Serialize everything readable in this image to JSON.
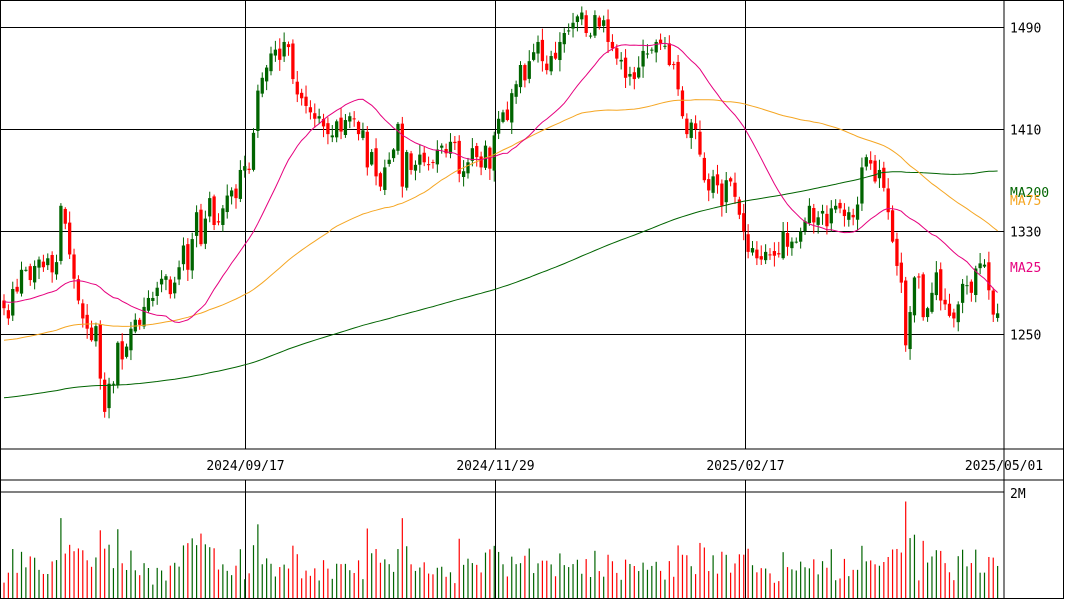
{
  "chart_data": [
    {
      "type": "candlestick",
      "x_ticks": [
        "2024/09/17",
        "2024/11/29",
        "2025/02/17",
        "2025/05/01"
      ],
      "y_ticks": [
        1250,
        1330,
        1410,
        1490
      ],
      "ylim": [
        1160,
        1510
      ],
      "grid": true,
      "legend": [
        {
          "name": "MA200",
          "color": "#006400"
        },
        {
          "name": "MA75",
          "color": "#f5a623"
        },
        {
          "name": "MA25",
          "color": "#e6007e"
        }
      ],
      "colors": {
        "up": "#006400",
        "down": "#ff0000"
      },
      "closes": [
        1270,
        1262,
        1285,
        1283,
        1300,
        1300,
        1292,
        1303,
        1308,
        1302,
        1309,
        1298,
        1306,
        1350,
        1336,
        1312,
        1293,
        1276,
        1262,
        1254,
        1245,
        1256,
        1215,
        1189,
        1211,
        1211,
        1243,
        1230,
        1240,
        1254,
        1261,
        1257,
        1271,
        1278,
        1278,
        1286,
        1293,
        1295,
        1281,
        1290,
        1302,
        1319,
        1300,
        1324,
        1345,
        1320,
        1340,
        1356,
        1335,
        1337,
        1348,
        1358,
        1362,
        1356,
        1378,
        1381,
        1378,
        1407,
        1440,
        1450,
        1458,
        1469,
        1472,
        1464,
        1478,
        1474,
        1449,
        1437,
        1434,
        1428,
        1423,
        1418,
        1420,
        1412,
        1406,
        1405,
        1416,
        1408,
        1417,
        1420,
        1418,
        1406,
        1409,
        1380,
        1392,
        1373,
        1365,
        1380,
        1386,
        1394,
        1414,
        1365,
        1392,
        1378,
        1382,
        1390,
        1384,
        1382,
        1384,
        1394,
        1397,
        1391,
        1400,
        1399,
        1375,
        1377,
        1384,
        1395,
        1388,
        1380,
        1397,
        1379,
        1405,
        1418,
        1423,
        1417,
        1438,
        1445,
        1460,
        1448,
        1463,
        1470,
        1478,
        1463,
        1456,
        1467,
        1465,
        1478,
        1485,
        1487,
        1493,
        1498,
        1501,
        1485,
        1483,
        1499,
        1490,
        1495,
        1478,
        1473,
        1465,
        1464,
        1450,
        1453,
        1449,
        1458,
        1471,
        1469,
        1472,
        1478,
        1477,
        1475,
        1460,
        1460,
        1441,
        1420,
        1406,
        1415,
        1410,
        1390,
        1370,
        1362,
        1373,
        1366,
        1350,
        1370,
        1369,
        1357,
        1343,
        1330,
        1314,
        1317,
        1309,
        1308,
        1314,
        1312,
        1311,
        1312,
        1330,
        1318,
        1322,
        1322,
        1330,
        1338,
        1350,
        1337,
        1341,
        1346,
        1334,
        1348,
        1350,
        1348,
        1342,
        1345,
        1341,
        1351,
        1380,
        1388,
        1383,
        1369,
        1378,
        1364,
        1345,
        1322,
        1303,
        1290,
        1241,
        1267,
        1294,
        1294,
        1263,
        1270,
        1282,
        1298,
        1276,
        1273,
        1264,
        1262,
        1273,
        1289,
        1288,
        1282,
        1301,
        1305,
        1304,
        1284,
        1265,
        1266
      ]
    },
    {
      "type": "bar",
      "y_ticks_label": "2M",
      "volume_scale_millions": 2
    }
  ]
}
